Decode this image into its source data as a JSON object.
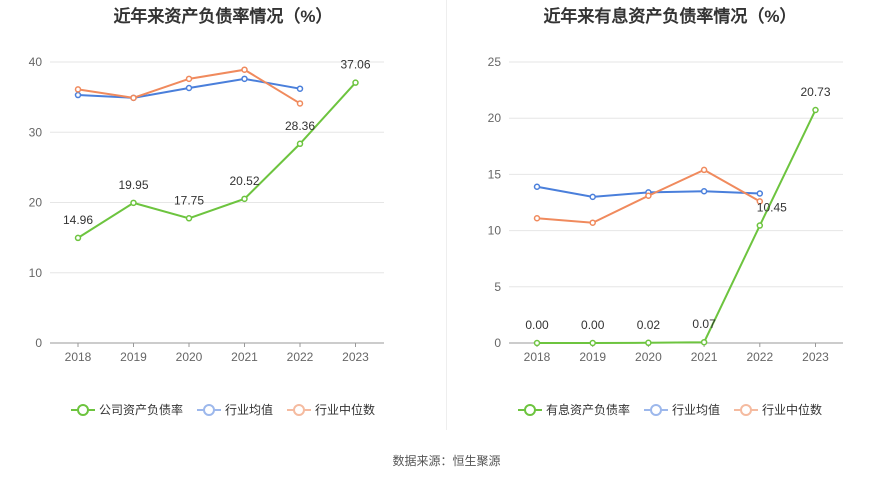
{
  "chart_data": [
    {
      "type": "line",
      "title": "近年来资产负债率情况（%）",
      "categories": [
        "2018",
        "2019",
        "2020",
        "2021",
        "2022",
        "2023"
      ],
      "ylim": [
        0,
        40
      ],
      "yticks": [
        "0",
        "10",
        "20",
        "30",
        "40"
      ],
      "grid": true,
      "legend_position": "bottom",
      "series": [
        {
          "name": "公司资产负债率",
          "color": "#6dc43f",
          "values": [
            14.96,
            19.95,
            17.75,
            20.52,
            28.36,
            37.06
          ],
          "labels": [
            "14.96",
            "19.95",
            "17.75",
            "20.52",
            "28.36",
            "37.06"
          ]
        },
        {
          "name": "行业均值",
          "color": "#4a7fdb",
          "values": [
            35.3,
            34.9,
            36.3,
            37.6,
            36.2,
            null
          ]
        },
        {
          "name": "行业中位数",
          "color": "#f08a5d",
          "values": [
            36.1,
            34.9,
            37.6,
            38.9,
            34.1,
            null
          ]
        }
      ]
    },
    {
      "type": "line",
      "title": "近年来有息资产负债率情况（%）",
      "categories": [
        "2018",
        "2019",
        "2020",
        "2021",
        "2022",
        "2023"
      ],
      "ylim": [
        0,
        25
      ],
      "yticks": [
        "0",
        "5",
        "10",
        "15",
        "20",
        "25"
      ],
      "grid": true,
      "legend_position": "bottom",
      "series": [
        {
          "name": "有息资产负债率",
          "color": "#6dc43f",
          "values": [
            0.0,
            0.0,
            0.02,
            0.07,
            10.45,
            20.73
          ],
          "labels": [
            "0.00",
            "0.00",
            "0.02",
            "0.07",
            "10.45",
            "20.73"
          ]
        },
        {
          "name": "行业均值",
          "color": "#4a7fdb",
          "values": [
            13.9,
            13.0,
            13.4,
            13.5,
            13.3,
            null
          ]
        },
        {
          "name": "行业中位数",
          "color": "#f08a5d",
          "values": [
            11.1,
            10.7,
            13.1,
            15.4,
            12.6,
            null
          ]
        }
      ]
    }
  ],
  "source": "数据来源：恒生聚源"
}
